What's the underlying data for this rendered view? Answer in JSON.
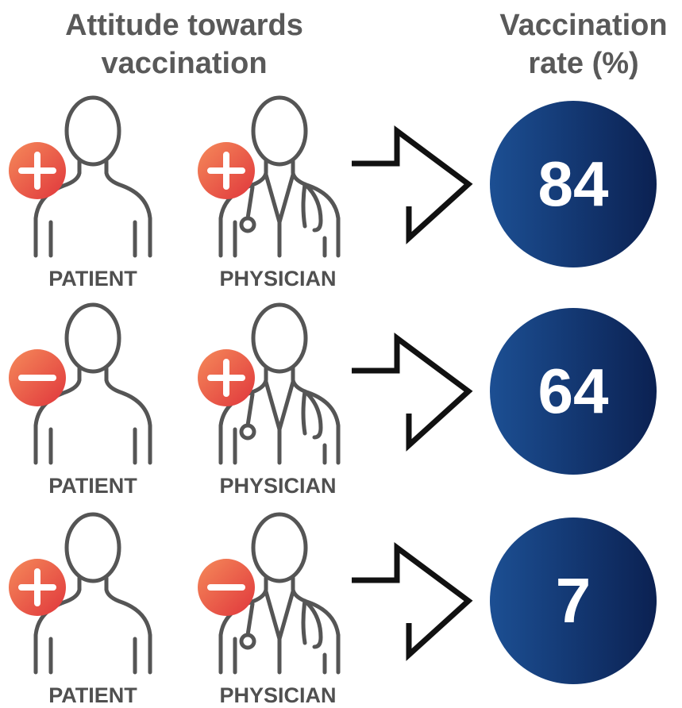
{
  "header": {
    "attitude": "Attitude towards vaccination",
    "rate": "Vaccination rate (%)"
  },
  "rows": [
    {
      "patient": "PATIENT",
      "physician": "PHYSICIAN",
      "rate": 84
    },
    {
      "patient": "PATIENT",
      "physician": "PHYSICIAN",
      "rate": 64
    },
    {
      "patient": "PATIENT",
      "physician": "PHYSICIAN",
      "rate": 7
    }
  ]
}
